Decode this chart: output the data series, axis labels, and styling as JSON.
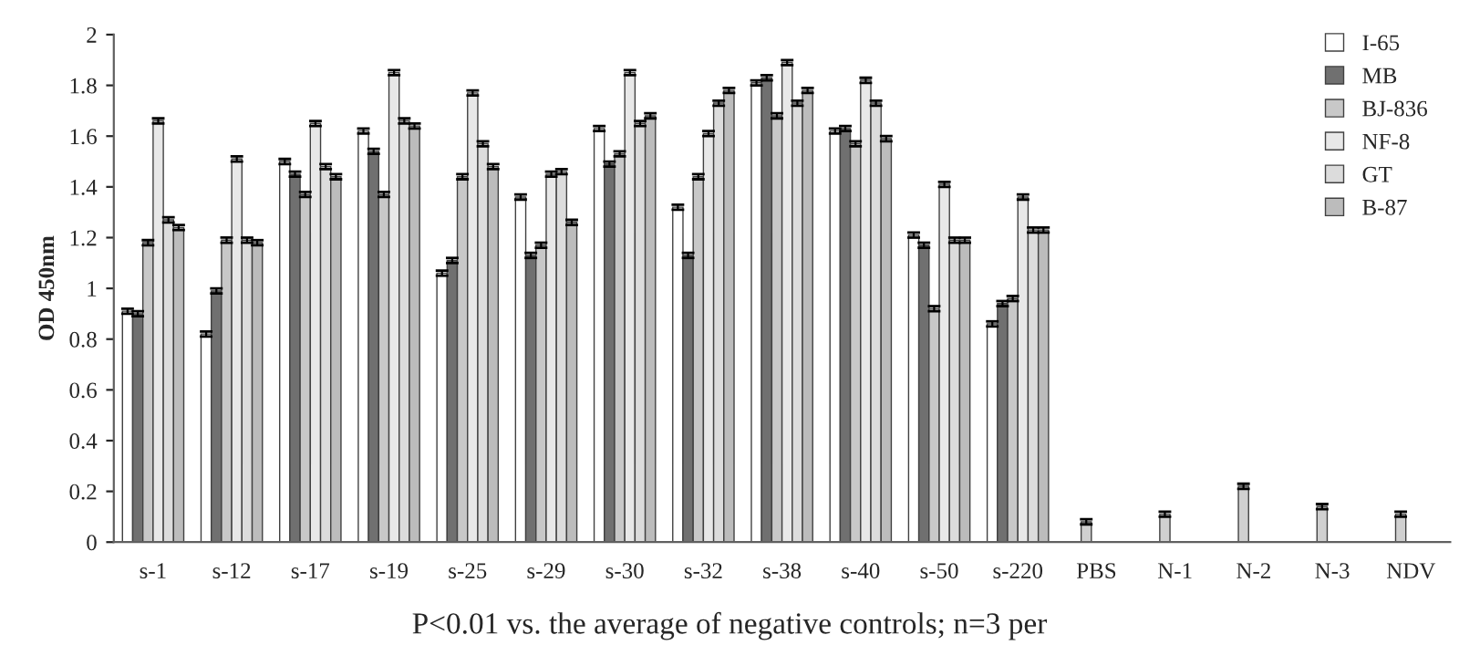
{
  "chart_data": {
    "type": "bar",
    "categories": [
      "s-1",
      "s-12",
      "s-17",
      "s-19",
      "s-25",
      "s-29",
      "s-30",
      "s-32",
      "s-38",
      "s-40",
      "s-50",
      "s-220",
      "PBS",
      "N-1",
      "N-2",
      "N-3",
      "NDV"
    ],
    "series": [
      {
        "name": "I-65",
        "color": "#ffffff",
        "values": [
          0.91,
          0.82,
          1.5,
          1.62,
          1.06,
          1.36,
          1.63,
          1.32,
          1.81,
          1.62,
          1.21,
          0.86,
          null,
          null,
          null,
          null,
          null
        ],
        "errors": [
          0.01,
          0.01,
          0.01,
          0.01,
          0.01,
          0.01,
          0.01,
          0.01,
          0.01,
          0.01,
          0.01,
          0.01,
          null,
          null,
          null,
          null,
          null
        ]
      },
      {
        "name": "MB",
        "color": "#707070",
        "values": [
          0.9,
          0.99,
          1.45,
          1.54,
          1.11,
          1.13,
          1.49,
          1.13,
          1.83,
          1.63,
          1.17,
          0.94,
          null,
          null,
          null,
          null,
          null
        ],
        "errors": [
          0.01,
          0.01,
          0.01,
          0.01,
          0.01,
          0.01,
          0.01,
          0.01,
          0.01,
          0.01,
          0.01,
          0.01,
          null,
          null,
          null,
          null,
          null
        ]
      },
      {
        "name": "BJ-836",
        "color": "#c8c8c8",
        "values": [
          1.18,
          1.19,
          1.37,
          1.37,
          1.44,
          1.17,
          1.53,
          1.44,
          1.68,
          1.57,
          0.92,
          0.96,
          null,
          null,
          null,
          null,
          null
        ],
        "errors": [
          0.01,
          0.01,
          0.01,
          0.01,
          0.01,
          0.01,
          0.01,
          0.01,
          0.01,
          0.01,
          0.01,
          0.01,
          null,
          null,
          null,
          null,
          null
        ]
      },
      {
        "name": "NF-8",
        "color": "#e8e8e8",
        "values": [
          1.66,
          1.51,
          1.65,
          1.85,
          1.77,
          1.45,
          1.85,
          1.61,
          1.89,
          1.82,
          1.41,
          1.36,
          null,
          null,
          null,
          null,
          null
        ],
        "errors": [
          0.01,
          0.01,
          0.01,
          0.01,
          0.01,
          0.01,
          0.01,
          0.01,
          0.01,
          0.01,
          0.01,
          0.01,
          null,
          null,
          null,
          null,
          null
        ]
      },
      {
        "name": "GT",
        "color": "#dcdcdc",
        "values": [
          1.27,
          1.19,
          1.48,
          1.66,
          1.57,
          1.46,
          1.65,
          1.73,
          1.73,
          1.73,
          1.19,
          1.23,
          null,
          null,
          null,
          null,
          null
        ],
        "errors": [
          0.01,
          0.01,
          0.01,
          0.01,
          0.01,
          0.01,
          0.01,
          0.01,
          0.01,
          0.01,
          0.01,
          0.01,
          null,
          null,
          null,
          null,
          null
        ]
      },
      {
        "name": "B-87",
        "color": "#bcbcbc",
        "values": [
          1.24,
          1.18,
          1.44,
          1.64,
          1.48,
          1.26,
          1.68,
          1.78,
          1.78,
          1.59,
          1.19,
          1.23,
          null,
          null,
          null,
          null,
          null
        ],
        "errors": [
          0.01,
          0.01,
          0.01,
          0.01,
          0.01,
          0.01,
          0.01,
          0.01,
          0.01,
          0.01,
          0.01,
          0.01,
          null,
          null,
          null,
          null,
          null
        ]
      },
      {
        "color": "#d0d0d0",
        "values": [
          null,
          null,
          null,
          null,
          null,
          null,
          null,
          null,
          null,
          null,
          null,
          null,
          0.08,
          0.11,
          0.22,
          0.14,
          0.11
        ],
        "errors": [
          null,
          null,
          null,
          null,
          null,
          null,
          null,
          null,
          null,
          null,
          null,
          null,
          0.01,
          0.01,
          0.01,
          0.01,
          0.01
        ]
      }
    ],
    "ylabel": "OD 450nm",
    "ylim": [
      0,
      2
    ],
    "yticks": [
      0,
      0.2,
      0.4,
      0.6,
      0.8,
      1,
      1.2,
      1.4,
      1.6,
      1.8,
      2
    ],
    "annotations": [
      "P<0.01 vs. the average of negative controls; n=3 per"
    ],
    "legend": "top right",
    "grid": false
  }
}
